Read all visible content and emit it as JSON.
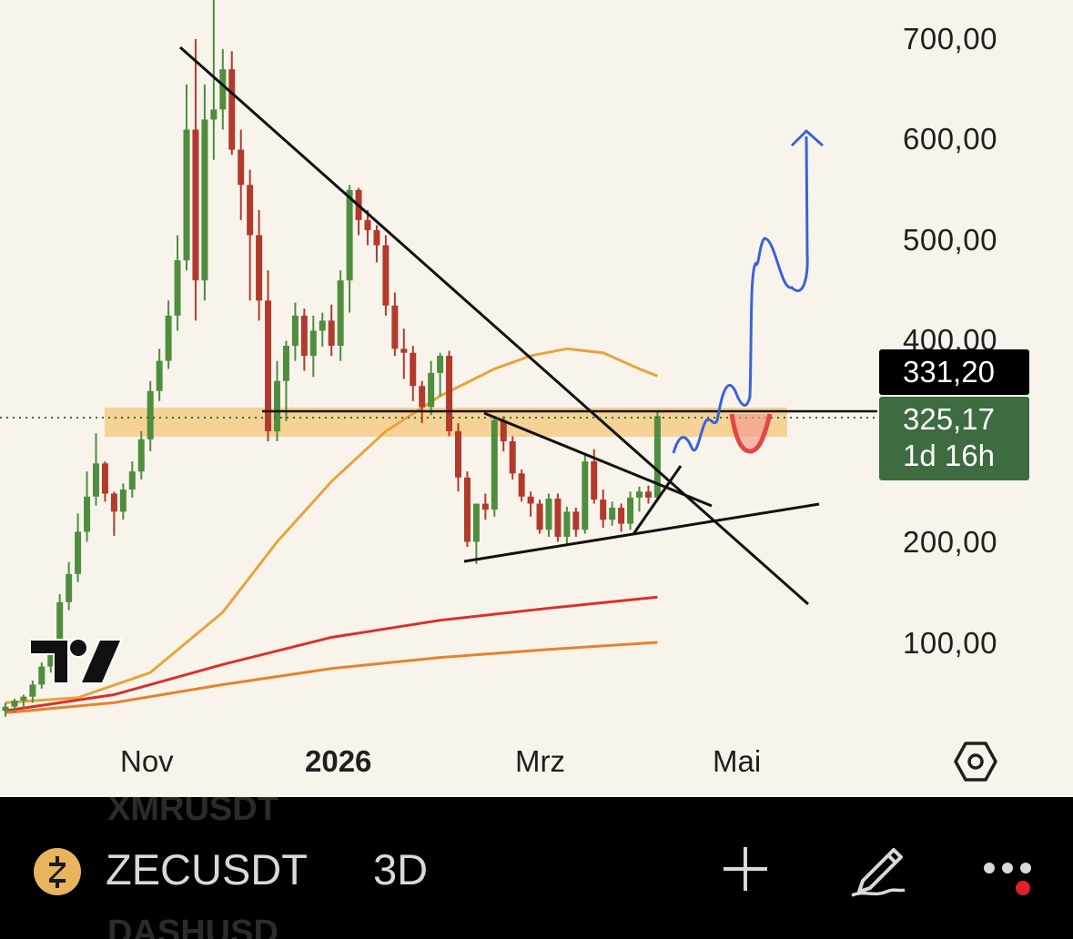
{
  "chart_data": {
    "type": "candlestick",
    "symbol": "ZECUSDT",
    "interval": "3D",
    "x_ticks": [
      "Nov",
      "2026",
      "Mrz",
      "Mai"
    ],
    "y_ticks": [
      "700,00",
      "600,00",
      "500,00",
      "400,00",
      "200,00",
      "100,00"
    ],
    "ylim": [
      40,
      740
    ],
    "candles": [
      {
        "o": 32,
        "h": 40,
        "l": 26,
        "c": 36
      },
      {
        "o": 36,
        "h": 44,
        "l": 30,
        "c": 42
      },
      {
        "o": 42,
        "h": 48,
        "l": 34,
        "c": 46
      },
      {
        "o": 46,
        "h": 62,
        "l": 40,
        "c": 58
      },
      {
        "o": 58,
        "h": 80,
        "l": 54,
        "c": 76
      },
      {
        "o": 76,
        "h": 100,
        "l": 70,
        "c": 92
      },
      {
        "o": 92,
        "h": 148,
        "l": 86,
        "c": 140
      },
      {
        "o": 140,
        "h": 180,
        "l": 132,
        "c": 168
      },
      {
        "o": 168,
        "h": 228,
        "l": 160,
        "c": 210
      },
      {
        "o": 210,
        "h": 270,
        "l": 200,
        "c": 245
      },
      {
        "o": 245,
        "h": 308,
        "l": 236,
        "c": 278
      },
      {
        "o": 278,
        "h": 280,
        "l": 240,
        "c": 248
      },
      {
        "o": 248,
        "h": 250,
        "l": 206,
        "c": 230
      },
      {
        "o": 230,
        "h": 258,
        "l": 222,
        "c": 252
      },
      {
        "o": 252,
        "h": 280,
        "l": 244,
        "c": 270
      },
      {
        "o": 270,
        "h": 310,
        "l": 262,
        "c": 302
      },
      {
        "o": 302,
        "h": 360,
        "l": 290,
        "c": 350
      },
      {
        "o": 350,
        "h": 392,
        "l": 340,
        "c": 380
      },
      {
        "o": 380,
        "h": 440,
        "l": 372,
        "c": 425
      },
      {
        "o": 425,
        "h": 505,
        "l": 410,
        "c": 480
      },
      {
        "o": 480,
        "h": 655,
        "l": 470,
        "c": 610
      },
      {
        "o": 610,
        "h": 700,
        "l": 420,
        "c": 460
      },
      {
        "o": 460,
        "h": 655,
        "l": 440,
        "c": 620
      },
      {
        "o": 620,
        "h": 745,
        "l": 580,
        "c": 630
      },
      {
        "o": 630,
        "h": 690,
        "l": 610,
        "c": 670
      },
      {
        "o": 670,
        "h": 688,
        "l": 585,
        "c": 590
      },
      {
        "o": 590,
        "h": 610,
        "l": 520,
        "c": 555
      },
      {
        "o": 555,
        "h": 570,
        "l": 440,
        "c": 505
      },
      {
        "o": 505,
        "h": 530,
        "l": 420,
        "c": 440
      },
      {
        "o": 440,
        "h": 470,
        "l": 300,
        "c": 310
      },
      {
        "o": 310,
        "h": 380,
        "l": 300,
        "c": 360
      },
      {
        "o": 360,
        "h": 400,
        "l": 320,
        "c": 395
      },
      {
        "o": 395,
        "h": 438,
        "l": 380,
        "c": 425
      },
      {
        "o": 425,
        "h": 432,
        "l": 370,
        "c": 385
      },
      {
        "o": 385,
        "h": 425,
        "l": 364,
        "c": 410
      },
      {
        "o": 410,
        "h": 428,
        "l": 394,
        "c": 420
      },
      {
        "o": 420,
        "h": 436,
        "l": 385,
        "c": 395
      },
      {
        "o": 395,
        "h": 470,
        "l": 380,
        "c": 460
      },
      {
        "o": 460,
        "h": 555,
        "l": 428,
        "c": 550
      },
      {
        "o": 550,
        "h": 552,
        "l": 505,
        "c": 520
      },
      {
        "o": 520,
        "h": 530,
        "l": 495,
        "c": 510
      },
      {
        "o": 510,
        "h": 515,
        "l": 478,
        "c": 495
      },
      {
        "o": 495,
        "h": 505,
        "l": 425,
        "c": 435
      },
      {
        "o": 435,
        "h": 448,
        "l": 385,
        "c": 392
      },
      {
        "o": 392,
        "h": 412,
        "l": 362,
        "c": 388
      },
      {
        "o": 388,
        "h": 395,
        "l": 340,
        "c": 355
      },
      {
        "o": 355,
        "h": 360,
        "l": 318,
        "c": 334
      },
      {
        "o": 334,
        "h": 380,
        "l": 326,
        "c": 368
      },
      {
        "o": 368,
        "h": 388,
        "l": 345,
        "c": 385
      },
      {
        "o": 385,
        "h": 390,
        "l": 305,
        "c": 310
      },
      {
        "o": 310,
        "h": 318,
        "l": 250,
        "c": 264
      },
      {
        "o": 264,
        "h": 270,
        "l": 195,
        "c": 200
      },
      {
        "o": 200,
        "h": 238,
        "l": 178,
        "c": 238
      },
      {
        "o": 238,
        "h": 248,
        "l": 222,
        "c": 232
      },
      {
        "o": 232,
        "h": 325,
        "l": 225,
        "c": 321
      },
      {
        "o": 321,
        "h": 325,
        "l": 290,
        "c": 300
      },
      {
        "o": 300,
        "h": 305,
        "l": 262,
        "c": 268
      },
      {
        "o": 268,
        "h": 272,
        "l": 240,
        "c": 245
      },
      {
        "o": 245,
        "h": 250,
        "l": 225,
        "c": 238
      },
      {
        "o": 238,
        "h": 242,
        "l": 208,
        "c": 212
      },
      {
        "o": 212,
        "h": 248,
        "l": 205,
        "c": 243
      },
      {
        "o": 243,
        "h": 248,
        "l": 200,
        "c": 205
      },
      {
        "o": 205,
        "h": 235,
        "l": 196,
        "c": 230
      },
      {
        "o": 230,
        "h": 234,
        "l": 205,
        "c": 212
      },
      {
        "o": 212,
        "h": 286,
        "l": 208,
        "c": 280
      },
      {
        "o": 280,
        "h": 292,
        "l": 238,
        "c": 242
      },
      {
        "o": 242,
        "h": 252,
        "l": 214,
        "c": 222
      },
      {
        "o": 222,
        "h": 240,
        "l": 216,
        "c": 234
      },
      {
        "o": 234,
        "h": 238,
        "l": 210,
        "c": 218
      },
      {
        "o": 218,
        "h": 250,
        "l": 212,
        "c": 244
      },
      {
        "o": 244,
        "h": 255,
        "l": 230,
        "c": 250
      },
      {
        "o": 250,
        "h": 256,
        "l": 238,
        "c": 244
      },
      {
        "o": 244,
        "h": 330,
        "l": 240,
        "c": 325
      }
    ],
    "ma_50": [
      [
        0,
        40
      ],
      [
        8,
        45
      ],
      [
        16,
        70
      ],
      [
        24,
        130
      ],
      [
        30,
        200
      ],
      [
        36,
        260
      ],
      [
        42,
        310
      ],
      [
        48,
        345
      ],
      [
        54,
        372
      ],
      [
        58,
        385
      ],
      [
        62,
        392
      ],
      [
        66,
        388
      ],
      [
        70,
        372
      ],
      [
        72,
        365
      ]
    ],
    "ma_200": [
      [
        0,
        32
      ],
      [
        12,
        48
      ],
      [
        24,
        78
      ],
      [
        36,
        105
      ],
      [
        48,
        122
      ],
      [
        60,
        134
      ],
      [
        72,
        145
      ]
    ],
    "ma_100_orange": [
      [
        0,
        30
      ],
      [
        12,
        40
      ],
      [
        24,
        58
      ],
      [
        36,
        74
      ],
      [
        48,
        85
      ],
      [
        60,
        93
      ],
      [
        72,
        100
      ]
    ],
    "current_price_line": 325.17,
    "resistance_line": 331.2,
    "colors": {
      "up": "#4e8e3e",
      "down": "#b23a2c",
      "ma_50": "#e8a33b",
      "ma_200": "#d9302a",
      "ma_100_orange": "#e9812b",
      "zone": "#f4c77a",
      "projection": "#3a63d8",
      "cup": "#e24646"
    }
  },
  "price_labels": {
    "resistance": "331,20",
    "current": "325,17",
    "countdown": "1d 16h"
  },
  "toolbar": {
    "ghost_above": "XMRUSDT",
    "ghost_below": "DASHUSD",
    "symbol": "ZECUSDT",
    "interval": "3D"
  },
  "icons": [
    "tradingview-logo",
    "settings-icon",
    "zcash-coin-icon",
    "plus-icon",
    "draw-icon",
    "more-icon"
  ]
}
